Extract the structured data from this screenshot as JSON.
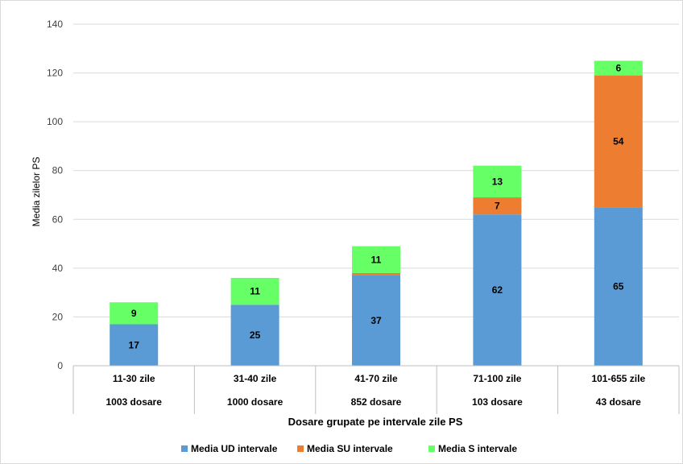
{
  "chart_data": {
    "type": "bar",
    "stacked": true,
    "categories": [
      "11-30 zile",
      "31-40 zile",
      "41-70 zile",
      "71-100 zile",
      "101-655 zile"
    ],
    "category_sublabels": [
      "1003 dosare",
      "1000 dosare",
      "852 dosare",
      "103 dosare",
      "43 dosare"
    ],
    "series": [
      {
        "name": "Media UD intervale",
        "color": "#5b9bd5",
        "values": [
          17,
          25,
          37,
          62,
          65
        ],
        "labels": [
          "17",
          "25",
          "37",
          "62",
          "65"
        ]
      },
      {
        "name": "Media SU intervale",
        "color": "#ed7d31",
        "values": [
          0,
          0,
          1,
          7,
          54
        ],
        "labels": [
          "",
          "",
          "",
          "7",
          "54"
        ]
      },
      {
        "name": "Media S intervale",
        "color": "#66ff66",
        "values": [
          9,
          11,
          11,
          13,
          6
        ],
        "labels": [
          "9",
          "11",
          "11",
          "13",
          "6"
        ]
      }
    ],
    "ylim": [
      0,
      140
    ],
    "yticks": [
      0,
      20,
      40,
      60,
      80,
      100,
      120,
      140
    ],
    "xlabel": "Dosare grupate pe intervale zile PS",
    "ylabel": "Media zilelor PS",
    "grid": true,
    "legend": "bottom"
  }
}
